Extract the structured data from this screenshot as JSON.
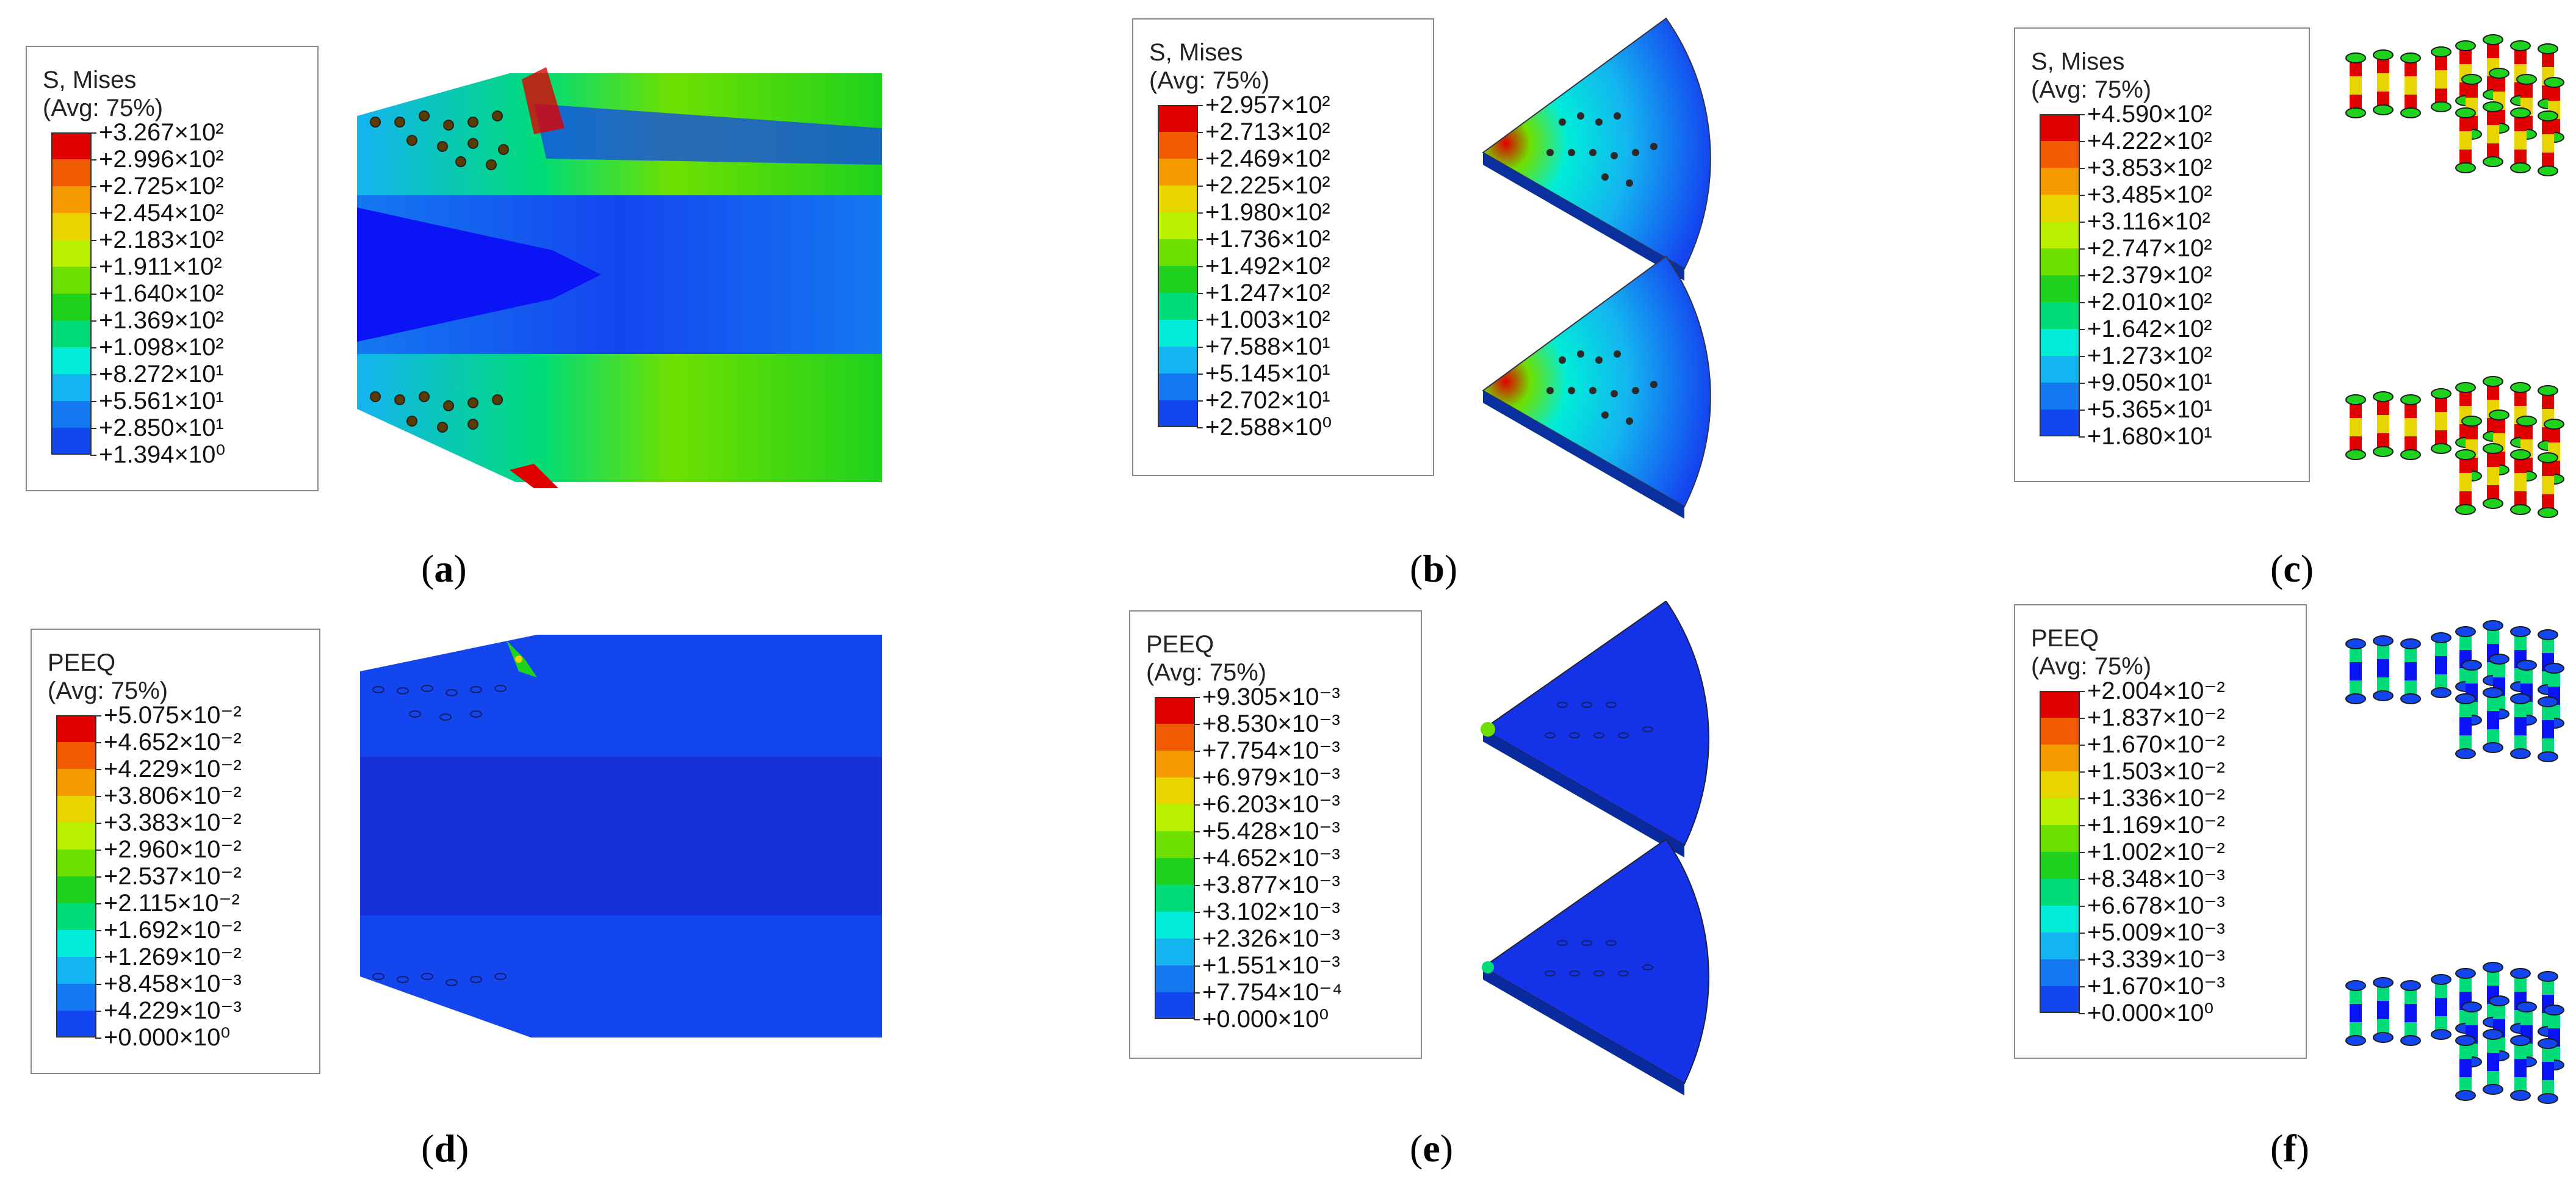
{
  "panels": [
    {
      "id": "a",
      "caption": "a",
      "legend": {
        "title": "S, Mises",
        "avg": "(Avg: 75%)",
        "values": [
          "+3.267×10²",
          "+2.996×10²",
          "+2.725×10²",
          "+2.454×10²",
          "+2.183×10²",
          "+1.911×10²",
          "+1.640×10²",
          "+1.369×10²",
          "+1.098×10²",
          "+8.272×10¹",
          "+5.561×10¹",
          "+2.850×10¹",
          "+1.394×10⁰"
        ]
      }
    },
    {
      "id": "b",
      "caption": "b",
      "legend": {
        "title": "S, Mises",
        "avg": "(Avg: 75%)",
        "values": [
          "+2.957×10²",
          "+2.713×10²",
          "+2.469×10²",
          "+2.225×10²",
          "+1.980×10²",
          "+1.736×10²",
          "+1.492×10²",
          "+1.247×10²",
          "+1.003×10²",
          "+7.588×10¹",
          "+5.145×10¹",
          "+2.702×10¹",
          "+2.588×10⁰"
        ]
      }
    },
    {
      "id": "c",
      "caption": "c",
      "legend": {
        "title": "S, Mises",
        "avg": "(Avg: 75%)",
        "values": [
          "+4.590×10²",
          "+4.222×10²",
          "+3.853×10²",
          "+3.485×10²",
          "+3.116×10²",
          "+2.747×10²",
          "+2.379×10²",
          "+2.010×10²",
          "+1.642×10²",
          "+1.273×10²",
          "+9.050×10¹",
          "+5.365×10¹",
          "+1.680×10¹"
        ]
      }
    },
    {
      "id": "d",
      "caption": "d",
      "legend": {
        "title": "PEEQ",
        "avg": "(Avg: 75%)",
        "values": [
          "+5.075×10⁻²",
          "+4.652×10⁻²",
          "+4.229×10⁻²",
          "+3.806×10⁻²",
          "+3.383×10⁻²",
          "+2.960×10⁻²",
          "+2.537×10⁻²",
          "+2.115×10⁻²",
          "+1.692×10⁻²",
          "+1.269×10⁻²",
          "+8.458×10⁻³",
          "+4.229×10⁻³",
          "+0.000×10⁰"
        ]
      }
    },
    {
      "id": "e",
      "caption": "e",
      "legend": {
        "title": "PEEQ",
        "avg": "(Avg: 75%)",
        "values": [
          "+9.305×10⁻³",
          "+8.530×10⁻³",
          "+7.754×10⁻³",
          "+6.979×10⁻³",
          "+6.203×10⁻³",
          "+5.428×10⁻³",
          "+4.652×10⁻³",
          "+3.877×10⁻³",
          "+3.102×10⁻³",
          "+2.326×10⁻³",
          "+1.551×10⁻³",
          "+7.754×10⁻⁴",
          "+0.000×10⁰"
        ]
      }
    },
    {
      "id": "f",
      "caption": "f",
      "legend": {
        "title": "PEEQ",
        "avg": "(Avg: 75%)",
        "values": [
          "+2.004×10⁻²",
          "+1.837×10⁻²",
          "+1.670×10⁻²",
          "+1.503×10⁻²",
          "+1.336×10⁻²",
          "+1.169×10⁻²",
          "+1.002×10⁻²",
          "+8.348×10⁻³",
          "+6.678×10⁻³",
          "+5.009×10⁻³",
          "+3.339×10⁻³",
          "+1.670×10⁻³",
          "+0.000×10⁰"
        ]
      }
    }
  ],
  "colormap": [
    "#e00000",
    "#f05a00",
    "#f59a00",
    "#e8d400",
    "#b8f000",
    "#6ee000",
    "#1ed21e",
    "#00dc78",
    "#00ecd8",
    "#14b4f0",
    "#1478f0",
    "#1446f0",
    "#0a14f5"
  ]
}
